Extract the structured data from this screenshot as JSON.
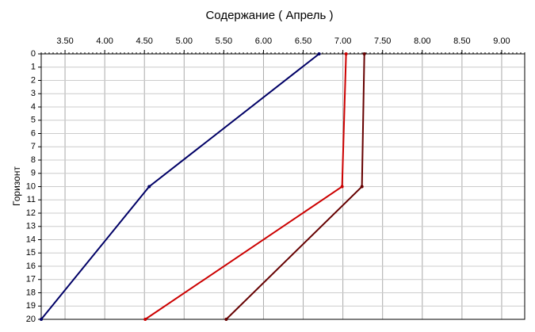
{
  "chart_data": {
    "type": "line",
    "title": "Содержание    ( Апрель )",
    "y_label": "Горизонт",
    "y": [
      0,
      10,
      20
    ],
    "series": [
      {
        "color": "#000066",
        "values": [
          6.7,
          4.56,
          3.2
        ]
      },
      {
        "color": "#cc0000",
        "values": [
          7.04,
          6.99,
          4.51
        ]
      },
      {
        "color": "#660000",
        "values": [
          7.27,
          7.24,
          5.53
        ]
      }
    ],
    "xlim": [
      3.2,
      9.29
    ],
    "xticks": [
      {
        "value": 3.5,
        "label": "3.50"
      },
      {
        "value": 4.0,
        "label": "4.00"
      },
      {
        "value": 4.5,
        "label": "4.50"
      },
      {
        "value": 5.0,
        "label": "5.00"
      },
      {
        "value": 5.5,
        "label": "5.50"
      },
      {
        "value": 6.0,
        "label": "6.00"
      },
      {
        "value": 6.5,
        "label": "6.50"
      },
      {
        "value": 7.0,
        "label": "7.00"
      },
      {
        "value": 7.5,
        "label": "7.50"
      },
      {
        "value": 8.0,
        "label": "8.00"
      },
      {
        "value": 8.5,
        "label": "8.50"
      },
      {
        "value": 9.0,
        "label": "9.00"
      }
    ],
    "ylim": [
      0,
      20
    ],
    "yticks": [
      0,
      1,
      2,
      3,
      4,
      5,
      6,
      7,
      8,
      9,
      10,
      11,
      12,
      13,
      14,
      15,
      16,
      17,
      18,
      19,
      20
    ],
    "y_inverted": true,
    "x_axis_position": "top",
    "grid": true
  }
}
